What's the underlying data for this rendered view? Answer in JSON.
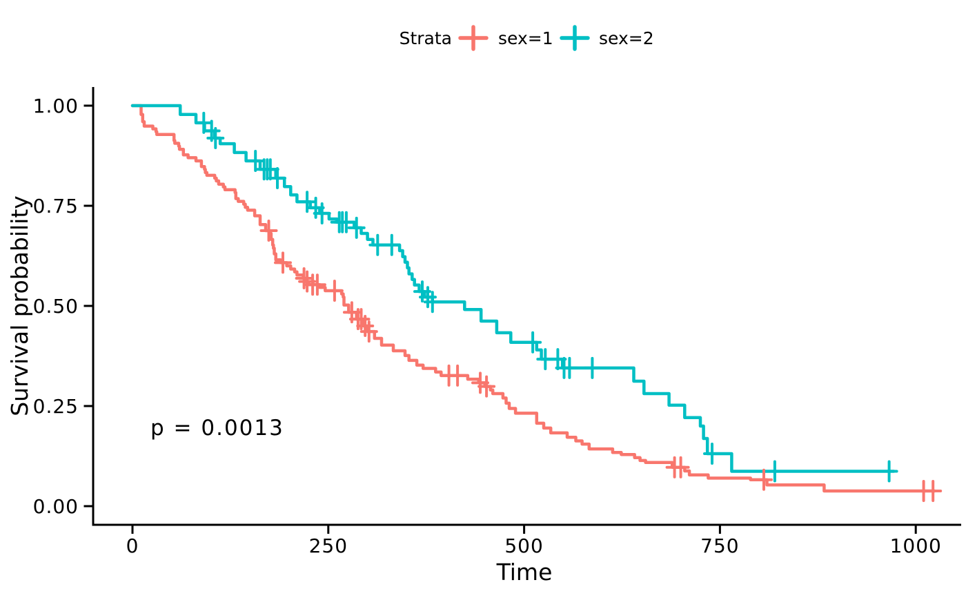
{
  "legend": {
    "title": "Strata",
    "items": [
      {
        "label": "sex=1",
        "color": "#F8766D"
      },
      {
        "label": "sex=2",
        "color": "#00BFC4"
      }
    ]
  },
  "annotation": {
    "p_value": "p = 0.0013"
  },
  "axes": {
    "x": {
      "label": "Time",
      "tick_labels": [
        "0",
        "250",
        "500",
        "750",
        "1000"
      ],
      "tick_values": [
        0,
        250,
        500,
        750,
        1000
      ]
    },
    "y": {
      "label": "Survival probability",
      "tick_labels": [
        "1.00",
        "0.75",
        "0.50",
        "0.25",
        "0.00"
      ],
      "tick_values": [
        1.0,
        0.75,
        0.5,
        0.25,
        0.0
      ]
    }
  },
  "chart_data": {
    "type": "line",
    "subtype": "kaplan-meier-step-curve",
    "title": "",
    "xlabel": "Time",
    "ylabel": "Survival probability",
    "legend_title": "Strata",
    "legend_position": "top",
    "p_value_annotation": "p = 0.0013",
    "xlim": [
      0,
      1063
    ],
    "ylim": [
      0,
      1
    ],
    "x_ticks": [
      0,
      250,
      500,
      750,
      1000
    ],
    "y_ticks": [
      1.0,
      0.75,
      0.5,
      0.25,
      0.0
    ],
    "grid": false,
    "series": [
      {
        "name": "sex=1",
        "color": "#F8766D",
        "end_time": 1024,
        "steps": [
          [
            0,
            1
          ],
          [
            11,
            0.978
          ],
          [
            13,
            0.96
          ],
          [
            15,
            0.949
          ],
          [
            26,
            0.942
          ],
          [
            30,
            0.935
          ],
          [
            31,
            0.928
          ],
          [
            53,
            0.913
          ],
          [
            54,
            0.906
          ],
          [
            59,
            0.899
          ],
          [
            60,
            0.891
          ],
          [
            65,
            0.877
          ],
          [
            71,
            0.87
          ],
          [
            81,
            0.862
          ],
          [
            88,
            0.848
          ],
          [
            92,
            0.841
          ],
          [
            93,
            0.833
          ],
          [
            95,
            0.826
          ],
          [
            105,
            0.819
          ],
          [
            107,
            0.812
          ],
          [
            110,
            0.804
          ],
          [
            116,
            0.797
          ],
          [
            118,
            0.79
          ],
          [
            131,
            0.783
          ],
          [
            132,
            0.768
          ],
          [
            135,
            0.761
          ],
          [
            142,
            0.754
          ],
          [
            144,
            0.746
          ],
          [
            147,
            0.739
          ],
          [
            156,
            0.725
          ],
          [
            163,
            0.703
          ],
          [
            170,
            0.688
          ],
          [
            175,
            0.681
          ],
          [
            177,
            0.666
          ],
          [
            179,
            0.652
          ],
          [
            180,
            0.644
          ],
          [
            181,
            0.63
          ],
          [
            183,
            0.615
          ],
          [
            189,
            0.608
          ],
          [
            197,
            0.6
          ],
          [
            202,
            0.592
          ],
          [
            207,
            0.585
          ],
          [
            210,
            0.577
          ],
          [
            218,
            0.569
          ],
          [
            221,
            0.561
          ],
          [
            225,
            0.553
          ],
          [
            239,
            0.546
          ],
          [
            246,
            0.538
          ],
          [
            267,
            0.53
          ],
          [
            269,
            0.522
          ],
          [
            270,
            0.502
          ],
          [
            276,
            0.484
          ],
          [
            286,
            0.467
          ],
          [
            295,
            0.45
          ],
          [
            300,
            0.436
          ],
          [
            309,
            0.419
          ],
          [
            318,
            0.402
          ],
          [
            333,
            0.388
          ],
          [
            348,
            0.376
          ],
          [
            353,
            0.364
          ],
          [
            363,
            0.352
          ],
          [
            371,
            0.344
          ],
          [
            387,
            0.335
          ],
          [
            394,
            0.326
          ],
          [
            428,
            0.317
          ],
          [
            442,
            0.308
          ],
          [
            450,
            0.299
          ],
          [
            457,
            0.29
          ],
          [
            460,
            0.281
          ],
          [
            473,
            0.27
          ],
          [
            477,
            0.257
          ],
          [
            481,
            0.244
          ],
          [
            489,
            0.232
          ],
          [
            516,
            0.207
          ],
          [
            525,
            0.195
          ],
          [
            534,
            0.183
          ],
          [
            555,
            0.172
          ],
          [
            566,
            0.163
          ],
          [
            574,
            0.155
          ],
          [
            583,
            0.143
          ],
          [
            613,
            0.134
          ],
          [
            624,
            0.129
          ],
          [
            641,
            0.121
          ],
          [
            648,
            0.114
          ],
          [
            655,
            0.109
          ],
          [
            689,
            0.097
          ],
          [
            705,
            0.088
          ],
          [
            711,
            0.078
          ],
          [
            735,
            0.07
          ],
          [
            789,
            0.066
          ],
          [
            810,
            0.053
          ],
          [
            883,
            0.038
          ]
        ],
        "censor_times": [
          174,
          192,
          219,
          223,
          230,
          236,
          258,
          280,
          288,
          292,
          297,
          302,
          404,
          415,
          444,
          452,
          692,
          700,
          806,
          1010,
          1022
        ]
      },
      {
        "name": "sex=2",
        "color": "#00BFC4",
        "end_time": 972,
        "steps": [
          [
            0,
            1
          ],
          [
            61,
            0.978
          ],
          [
            81,
            0.957
          ],
          [
            92,
            0.937
          ],
          [
            105,
            0.919
          ],
          [
            112,
            0.905
          ],
          [
            130,
            0.883
          ],
          [
            145,
            0.862
          ],
          [
            163,
            0.841
          ],
          [
            183,
            0.819
          ],
          [
            194,
            0.798
          ],
          [
            202,
            0.777
          ],
          [
            210,
            0.76
          ],
          [
            227,
            0.745
          ],
          [
            239,
            0.731
          ],
          [
            251,
            0.717
          ],
          [
            261,
            0.709
          ],
          [
            283,
            0.695
          ],
          [
            292,
            0.681
          ],
          [
            300,
            0.666
          ],
          [
            307,
            0.652
          ],
          [
            341,
            0.638
          ],
          [
            345,
            0.623
          ],
          [
            348,
            0.609
          ],
          [
            351,
            0.595
          ],
          [
            353,
            0.58
          ],
          [
            357,
            0.566
          ],
          [
            360,
            0.552
          ],
          [
            366,
            0.536
          ],
          [
            373,
            0.522
          ],
          [
            383,
            0.51
          ],
          [
            424,
            0.491
          ],
          [
            445,
            0.462
          ],
          [
            465,
            0.433
          ],
          [
            483,
            0.409
          ],
          [
            516,
            0.39
          ],
          [
            522,
            0.367
          ],
          [
            549,
            0.345
          ],
          [
            640,
            0.312
          ],
          [
            653,
            0.281
          ],
          [
            685,
            0.252
          ],
          [
            705,
            0.221
          ],
          [
            725,
            0.2
          ],
          [
            729,
            0.169
          ],
          [
            734,
            0.131
          ],
          [
            765,
            0.087
          ]
        ],
        "censor_times": [
          91,
          101,
          106,
          157,
          168,
          172,
          176,
          185,
          223,
          234,
          242,
          264,
          268,
          273,
          286,
          313,
          331,
          370,
          377,
          383,
          511,
          527,
          543,
          551,
          558,
          587,
          740,
          820,
          966
        ]
      }
    ]
  }
}
